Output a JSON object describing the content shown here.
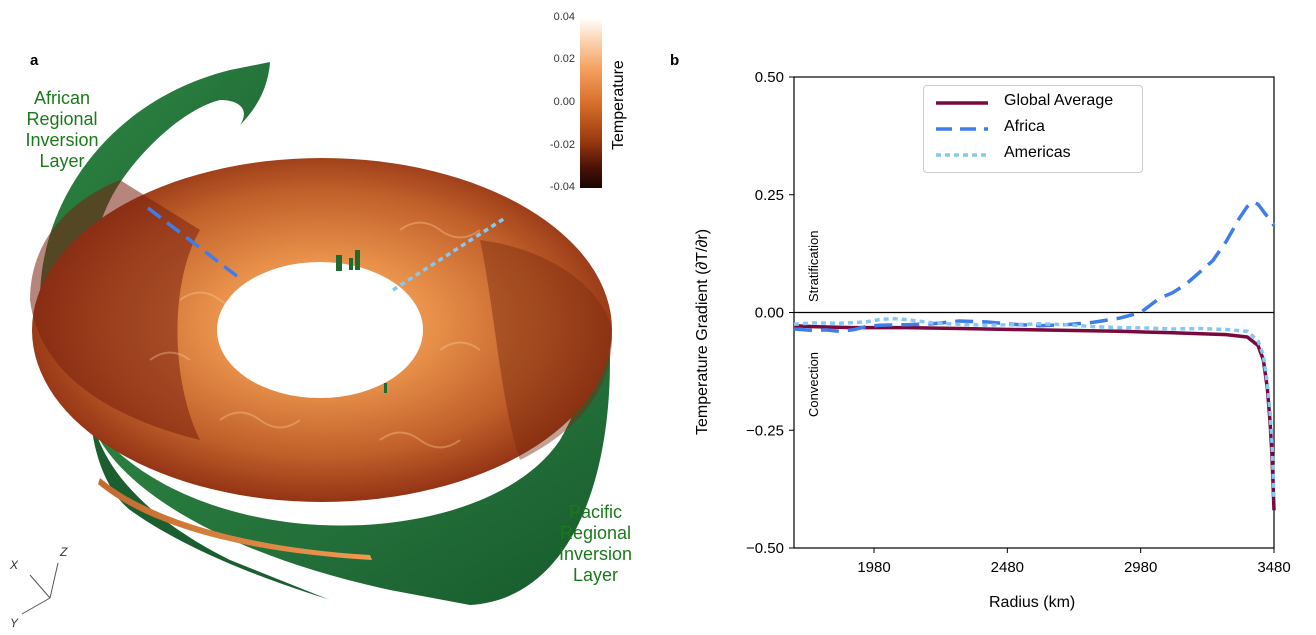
{
  "panel_a": {
    "letter": "a",
    "label_african": [
      "African",
      "Regional",
      "Inversion",
      "Layer"
    ],
    "label_pacific": [
      "Pacific",
      "Regional",
      "Inversion",
      "Layer"
    ],
    "colorbar": {
      "title": "Temperature",
      "ticks": [
        "0.04",
        "0.02",
        "0.00",
        "-0.02",
        "-0.04"
      ]
    },
    "axes": {
      "x": "X",
      "y": "Y",
      "z": "Z"
    },
    "colors": {
      "inversion_layer": "#2a7a3a",
      "hot": "#f4a060",
      "cold": "#2b0a00"
    }
  },
  "panel_b": {
    "letter": "b",
    "region_labels": {
      "above": "Stratification",
      "below": "Convection"
    }
  },
  "chart_data": {
    "type": "line",
    "title": "",
    "xlabel": "Radius (km)",
    "ylabel": "Temperature Gradient (∂T/∂r)",
    "xlim": [
      1680,
      3480
    ],
    "ylim": [
      -0.5,
      0.5
    ],
    "xticks": [
      "1980",
      "2480",
      "2980",
      "3480"
    ],
    "yticks": [
      "0.50",
      "0.25",
      "0.00",
      "−0.25",
      "−0.50"
    ],
    "legend_position": "top-center",
    "series": [
      {
        "name": "Global Average",
        "color": "#7a0a3e",
        "style": "solid",
        "x": [
          1680,
          1750,
          1900,
          2100,
          2300,
          2500,
          2700,
          2900,
          3100,
          3300,
          3380,
          3420,
          3440,
          3455,
          3465,
          3472,
          3478,
          3480
        ],
        "y": [
          -0.028,
          -0.03,
          -0.032,
          -0.032,
          -0.034,
          -0.036,
          -0.038,
          -0.04,
          -0.043,
          -0.047,
          -0.052,
          -0.07,
          -0.1,
          -0.16,
          -0.23,
          -0.3,
          -0.39,
          -0.42
        ]
      },
      {
        "name": "Africa",
        "color": "#3f7de8",
        "style": "dashed",
        "x": [
          1680,
          1750,
          1800,
          1850,
          1900,
          1950,
          2000,
          2100,
          2200,
          2300,
          2400,
          2500,
          2600,
          2700,
          2800,
          2900,
          2980,
          3050,
          3100,
          3150,
          3200,
          3250,
          3300,
          3350,
          3380,
          3400,
          3420,
          3440,
          3460,
          3480
        ],
        "y": [
          -0.035,
          -0.038,
          -0.037,
          -0.04,
          -0.037,
          -0.03,
          -0.027,
          -0.026,
          -0.024,
          -0.018,
          -0.02,
          -0.025,
          -0.028,
          -0.026,
          -0.021,
          -0.012,
          0.0,
          0.03,
          0.042,
          0.06,
          0.085,
          0.11,
          0.15,
          0.2,
          0.225,
          0.235,
          0.23,
          0.215,
          0.2,
          0.185
        ]
      },
      {
        "name": "Americas",
        "color": "#86c8f2",
        "style": "dotted",
        "x": [
          1680,
          1750,
          1850,
          1950,
          2000,
          2050,
          2100,
          2200,
          2300,
          2400,
          2500,
          2600,
          2700,
          2800,
          2900,
          3000,
          3100,
          3200,
          3300,
          3380,
          3420,
          3440,
          3455,
          3465,
          3472,
          3478,
          3480
        ],
        "y": [
          -0.025,
          -0.022,
          -0.023,
          -0.02,
          -0.015,
          -0.013,
          -0.015,
          -0.022,
          -0.025,
          -0.027,
          -0.026,
          -0.024,
          -0.026,
          -0.03,
          -0.032,
          -0.033,
          -0.035,
          -0.034,
          -0.036,
          -0.04,
          -0.06,
          -0.09,
          -0.15,
          -0.21,
          -0.27,
          -0.36,
          -0.4
        ]
      }
    ]
  }
}
